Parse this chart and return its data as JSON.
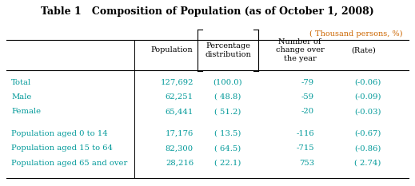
{
  "title": "Table 1   Composition of Population (as of October 1, 2008)",
  "subtitle": "( Thousand persons, %)",
  "col_headers_pop": "Population",
  "col_headers_pct": [
    "Percentage",
    "distribution"
  ],
  "col_headers_num": [
    "Number of",
    "change over",
    "the year"
  ],
  "col_headers_rate": "(Rate)",
  "row_labels": [
    "Total",
    "Male",
    "Female",
    "Population aged 0 to 14",
    "Population aged 15 to 64",
    "Population aged 65 and over"
  ],
  "pop_vals": [
    "127,692",
    "62,251",
    "65,441",
    "17,176",
    "82,300",
    "28,216"
  ],
  "pct_vals": [
    "(100.0)",
    "( 48.8)",
    "( 51.2)",
    "( 13.5)",
    "( 64.5)",
    "( 22.1)"
  ],
  "chg_vals": [
    "-79",
    "-59",
    "-20",
    "-116",
    "-715",
    "753"
  ],
  "rate_vals": [
    "(-0.06)",
    "(-0.09)",
    "(-0.03)",
    "(-0.67)",
    "(-0.86)",
    "( 2.74)"
  ],
  "bg_color": "#ffffff",
  "text_color": "#000000",
  "cyan_color": "#009999",
  "subtitle_color": "#cc6600"
}
